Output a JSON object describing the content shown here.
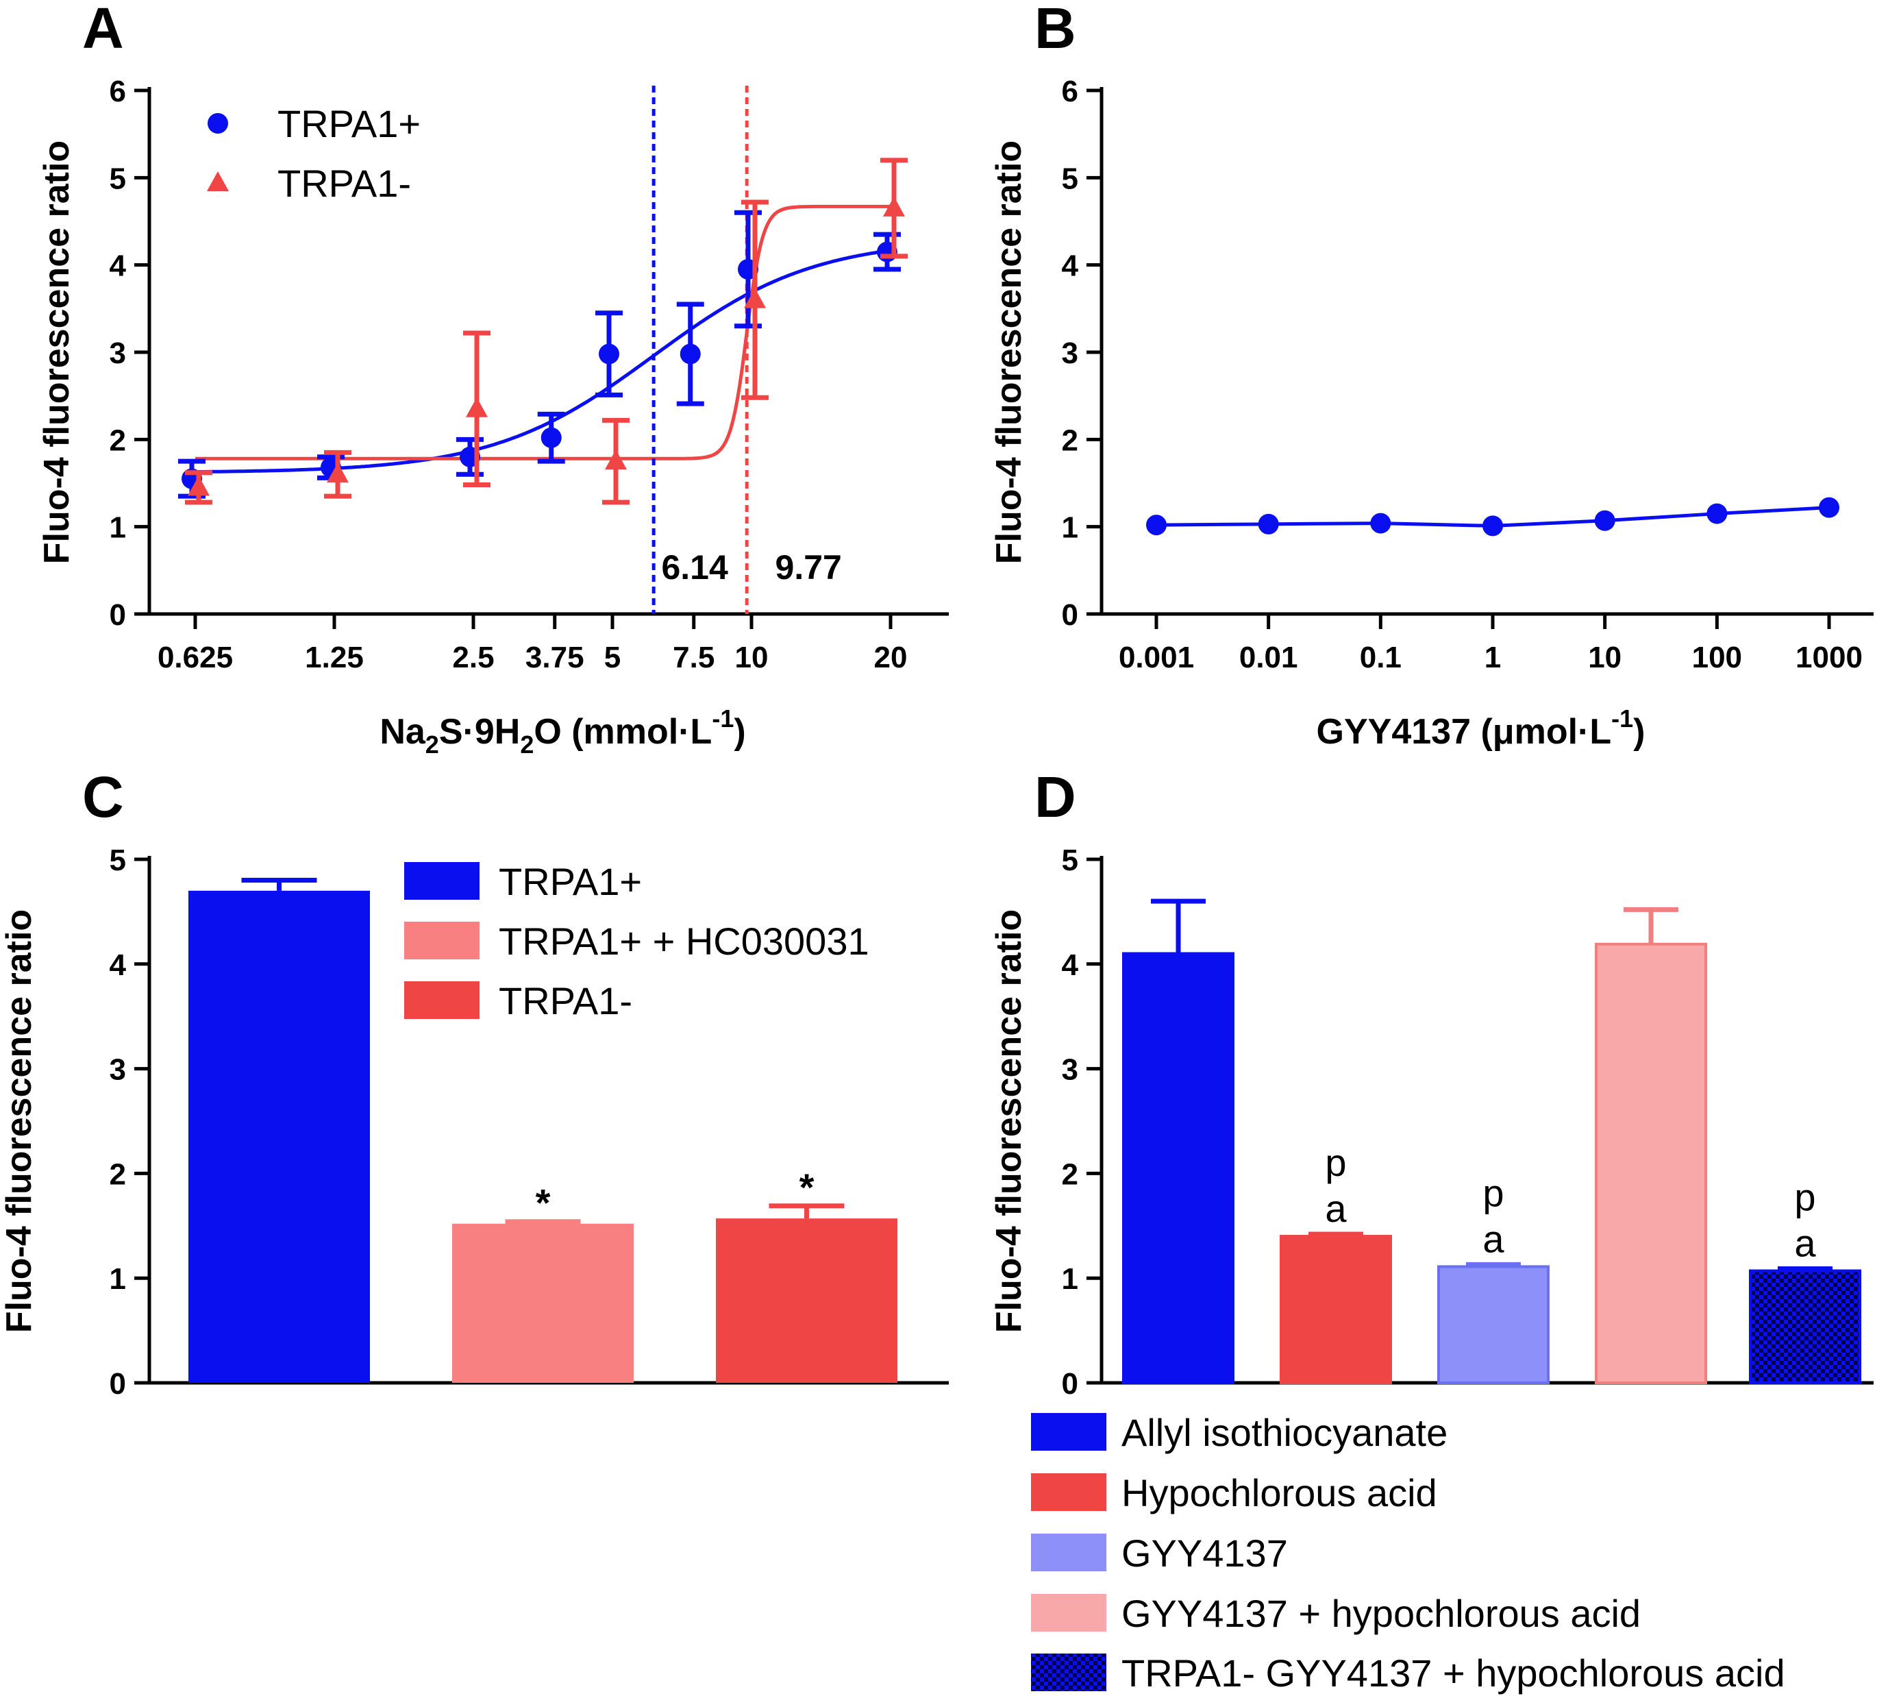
{
  "colors": {
    "blue": "#0a0ff0",
    "red": "#f04545",
    "pink": "#f88080",
    "lightblue": "#8c90f8",
    "lightpink": "#f8a8a8"
  },
  "chart_data": [
    {
      "panel": "A",
      "type": "line",
      "xscale": "log",
      "title": "",
      "xlabel_parts": [
        "Na",
        "2",
        "S·9H",
        "2",
        "O (mmol·L",
        "-1",
        ")"
      ],
      "ylabel": "Fluo-4 fluorescence ratio",
      "ylim": [
        0,
        6
      ],
      "yticks": [
        "0",
        "1",
        "2",
        "3",
        "4",
        "5",
        "6"
      ],
      "x_tick_labels": [
        "0.625",
        "1.25",
        "2.5",
        "3.75",
        "5",
        "7.5",
        "10",
        "20"
      ],
      "x_tick_values": [
        0.625,
        1.25,
        2.5,
        3.75,
        5,
        7.5,
        10,
        20
      ],
      "series": [
        {
          "name": "TRPA1+",
          "marker": "circle",
          "color": "#0a0ff0",
          "x": [
            0.625,
            1.25,
            2.5,
            3.75,
            5,
            7.5,
            10,
            20
          ],
          "y": [
            1.55,
            1.68,
            1.8,
            2.02,
            2.98,
            2.98,
            3.95,
            4.15
          ],
          "err": [
            0.2,
            0.12,
            0.2,
            0.27,
            0.47,
            0.57,
            0.65,
            0.2
          ],
          "fit": {
            "bottom": 1.62,
            "top": 4.3,
            "ec50": 6.14,
            "hill": 2.5
          }
        },
        {
          "name": "TRPA1-",
          "marker": "triangle",
          "color": "#f04545",
          "x": [
            0.625,
            1.25,
            2.5,
            5,
            10,
            20
          ],
          "y": [
            1.45,
            1.6,
            2.35,
            1.75,
            3.6,
            4.65
          ],
          "err": [
            0.17,
            0.25,
            0.87,
            0.47,
            1.12,
            0.55
          ],
          "fit": {
            "bottom": 1.78,
            "top": 4.67,
            "ec50": 9.77,
            "hill": 25
          }
        }
      ],
      "annotations": [
        {
          "text": "6.14",
          "x": 6.14,
          "color": "#0a0ff0"
        },
        {
          "text": "9.77",
          "x": 9.77,
          "color": "#f04545"
        }
      ],
      "legend": "top-left"
    },
    {
      "panel": "B",
      "type": "line",
      "xscale": "log",
      "xlabel_parts": [
        "GYY4137 (μmol·L",
        "-1",
        ")"
      ],
      "ylabel": "Fluo-4 fluorescence ratio",
      "ylim": [
        0,
        6
      ],
      "yticks": [
        "0",
        "1",
        "2",
        "3",
        "4",
        "5",
        "6"
      ],
      "x_tick_labels": [
        "0.001",
        "0.01",
        "0.1",
        "1",
        "10",
        "100",
        "1000"
      ],
      "x_tick_values": [
        0.001,
        0.01,
        0.1,
        1,
        10,
        100,
        1000
      ],
      "series": [
        {
          "name": "GYY4137",
          "marker": "circle",
          "color": "#0a0ff0",
          "x": [
            0.001,
            0.01,
            0.1,
            1,
            10,
            100,
            1000
          ],
          "y": [
            1.02,
            1.03,
            1.04,
            1.01,
            1.07,
            1.15,
            1.22
          ]
        }
      ]
    },
    {
      "panel": "C",
      "type": "bar",
      "ylabel": "Fluo-4 fluorescence ratio",
      "ylim": [
        0,
        5
      ],
      "yticks": [
        "0",
        "1",
        "2",
        "3",
        "4",
        "5"
      ],
      "categories": [
        "TRPA1+",
        "TRPA1+ + HC030031",
        "TRPA1-"
      ],
      "values": [
        4.7,
        1.52,
        1.57
      ],
      "err": [
        0.1,
        0.02,
        0.12
      ],
      "colors": [
        "#0a0ff0",
        "#f88080",
        "#f04545"
      ],
      "sig": [
        "",
        "*",
        "*"
      ],
      "legend": "top-right"
    },
    {
      "panel": "D",
      "type": "bar",
      "ylabel": "Fluo-4 fluorescence ratio",
      "ylim": [
        0,
        5
      ],
      "yticks": [
        "0",
        "1",
        "2",
        "3",
        "4",
        "5"
      ],
      "categories": [
        "Allyl isothiocyanate",
        "Hypochlorous acid",
        "GYY4137",
        "GYY4137 + hypochlorous acid",
        "TRPA1- GYY4137 + hypochlorous acid"
      ],
      "values": [
        4.1,
        1.4,
        1.11,
        4.19,
        1.07
      ],
      "err": [
        0.5,
        0.02,
        0.02,
        0.33,
        0.02
      ],
      "colors": [
        "#0a0ff0",
        "#f04545",
        "#8c90f8",
        "#f8a8a8",
        "#0a0ff0"
      ],
      "sig_top": [
        "",
        "p",
        "p",
        "",
        "p"
      ],
      "sig_bottom": [
        "",
        "a",
        "a",
        "",
        "a"
      ],
      "legend": "bottom"
    }
  ]
}
